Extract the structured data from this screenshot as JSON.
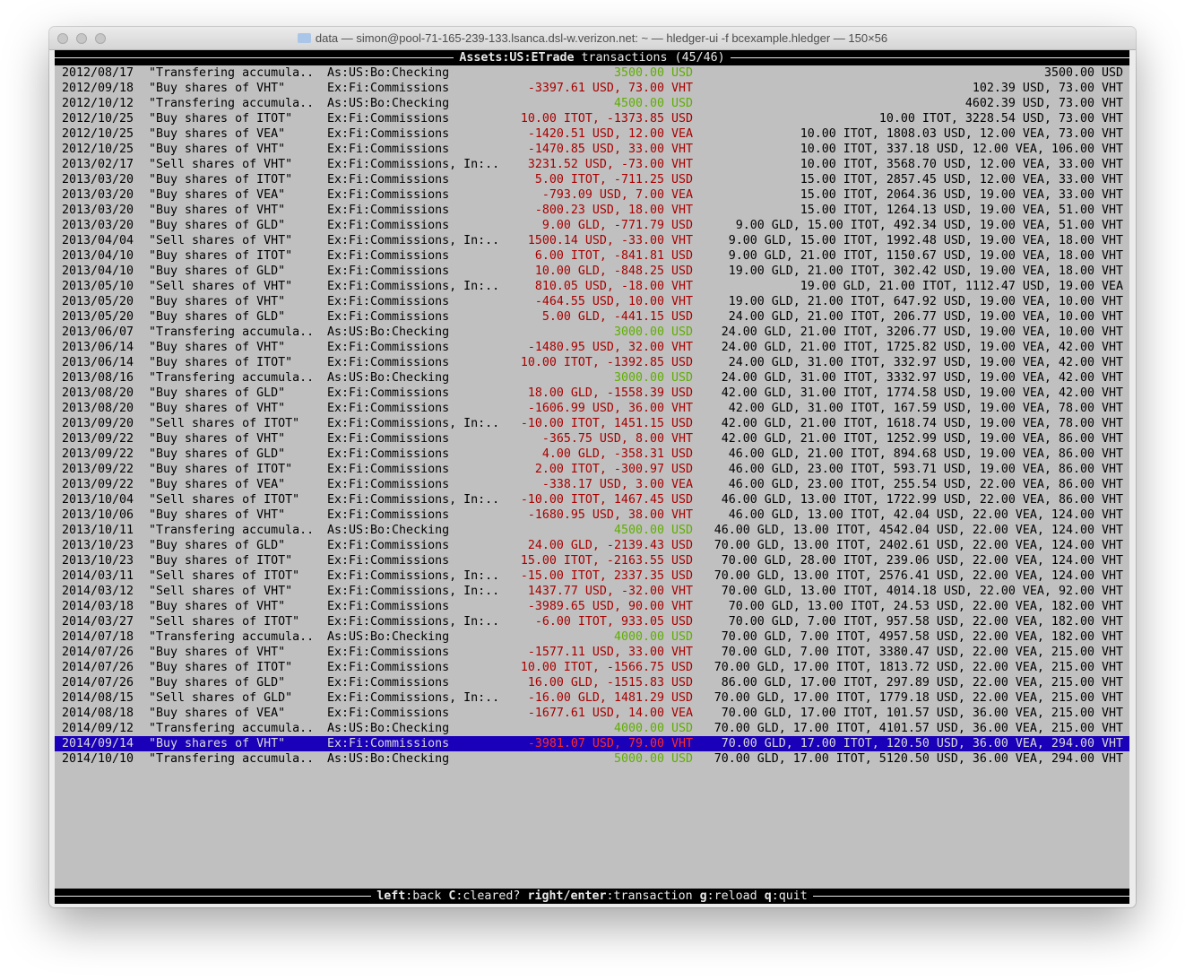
{
  "window": {
    "title": "data — simon@pool-71-165-239-133.lsanca.dsl-w.verizon.net: ~ — hledger-ui -f bcexample.hledger — 150×56"
  },
  "header": {
    "account": "Assets:US:ETrade",
    "suffix": " transactions (45/46)"
  },
  "colors": {
    "income": "#5fae00",
    "expense": "#a80000",
    "selection": "#1a00b8",
    "background": "#c0c0c0"
  },
  "selected_index": 44,
  "rows": [
    [
      "2012/08/17",
      "\"Transfering accumula..",
      "As:US:Bo:Checking",
      "3500.00 USD",
      "3500.00 USD",
      "inc"
    ],
    [
      "2012/09/18",
      "\"Buy shares of VHT\"",
      "Ex:Fi:Commissions",
      "-3397.61 USD, 73.00 VHT",
      "102.39 USD, 73.00 VHT",
      "exp"
    ],
    [
      "2012/10/12",
      "\"Transfering accumula..",
      "As:US:Bo:Checking",
      "4500.00 USD",
      "4602.39 USD, 73.00 VHT",
      "inc"
    ],
    [
      "2012/10/25",
      "\"Buy shares of ITOT\"",
      "Ex:Fi:Commissions",
      "10.00 ITOT, -1373.85 USD",
      "10.00 ITOT, 3228.54 USD, 73.00 VHT",
      "exp"
    ],
    [
      "2012/10/25",
      "\"Buy shares of VEA\"",
      "Ex:Fi:Commissions",
      "-1420.51 USD, 12.00 VEA",
      "10.00 ITOT, 1808.03 USD, 12.00 VEA, 73.00 VHT",
      "exp"
    ],
    [
      "2012/10/25",
      "\"Buy shares of VHT\"",
      "Ex:Fi:Commissions",
      "-1470.85 USD, 33.00 VHT",
      "10.00 ITOT, 337.18 USD, 12.00 VEA, 106.00 VHT",
      "exp"
    ],
    [
      "2013/02/17",
      "\"Sell shares of VHT\"",
      "Ex:Fi:Commissions, In:..",
      "3231.52 USD, -73.00 VHT",
      "10.00 ITOT, 3568.70 USD, 12.00 VEA, 33.00 VHT",
      "exp"
    ],
    [
      "2013/03/20",
      "\"Buy shares of ITOT\"",
      "Ex:Fi:Commissions",
      "5.00 ITOT, -711.25 USD",
      "15.00 ITOT, 2857.45 USD, 12.00 VEA, 33.00 VHT",
      "exp"
    ],
    [
      "2013/03/20",
      "\"Buy shares of VEA\"",
      "Ex:Fi:Commissions",
      "-793.09 USD, 7.00 VEA",
      "15.00 ITOT, 2064.36 USD, 19.00 VEA, 33.00 VHT",
      "exp"
    ],
    [
      "2013/03/20",
      "\"Buy shares of VHT\"",
      "Ex:Fi:Commissions",
      "-800.23 USD, 18.00 VHT",
      "15.00 ITOT, 1264.13 USD, 19.00 VEA, 51.00 VHT",
      "exp"
    ],
    [
      "2013/03/20",
      "\"Buy shares of GLD\"",
      "Ex:Fi:Commissions",
      "9.00 GLD, -771.79 USD",
      "9.00 GLD, 15.00 ITOT, 492.34 USD, 19.00 VEA, 51.00 VHT",
      "exp"
    ],
    [
      "2013/04/04",
      "\"Sell shares of VHT\"",
      "Ex:Fi:Commissions, In:..",
      "1500.14 USD, -33.00 VHT",
      "9.00 GLD, 15.00 ITOT, 1992.48 USD, 19.00 VEA, 18.00 VHT",
      "exp"
    ],
    [
      "2013/04/10",
      "\"Buy shares of ITOT\"",
      "Ex:Fi:Commissions",
      "6.00 ITOT, -841.81 USD",
      "9.00 GLD, 21.00 ITOT, 1150.67 USD, 19.00 VEA, 18.00 VHT",
      "exp"
    ],
    [
      "2013/04/10",
      "\"Buy shares of GLD\"",
      "Ex:Fi:Commissions",
      "10.00 GLD, -848.25 USD",
      "19.00 GLD, 21.00 ITOT, 302.42 USD, 19.00 VEA, 18.00 VHT",
      "exp"
    ],
    [
      "2013/05/10",
      "\"Sell shares of VHT\"",
      "Ex:Fi:Commissions, In:..",
      "810.05 USD, -18.00 VHT",
      "19.00 GLD, 21.00 ITOT, 1112.47 USD, 19.00 VEA",
      "exp"
    ],
    [
      "2013/05/20",
      "\"Buy shares of VHT\"",
      "Ex:Fi:Commissions",
      "-464.55 USD, 10.00 VHT",
      "19.00 GLD, 21.00 ITOT, 647.92 USD, 19.00 VEA, 10.00 VHT",
      "exp"
    ],
    [
      "2013/05/20",
      "\"Buy shares of GLD\"",
      "Ex:Fi:Commissions",
      "5.00 GLD, -441.15 USD",
      "24.00 GLD, 21.00 ITOT, 206.77 USD, 19.00 VEA, 10.00 VHT",
      "exp"
    ],
    [
      "2013/06/07",
      "\"Transfering accumula..",
      "As:US:Bo:Checking",
      "3000.00 USD",
      "24.00 GLD, 21.00 ITOT, 3206.77 USD, 19.00 VEA, 10.00 VHT",
      "inc"
    ],
    [
      "2013/06/14",
      "\"Buy shares of VHT\"",
      "Ex:Fi:Commissions",
      "-1480.95 USD, 32.00 VHT",
      "24.00 GLD, 21.00 ITOT, 1725.82 USD, 19.00 VEA, 42.00 VHT",
      "exp"
    ],
    [
      "2013/06/14",
      "\"Buy shares of ITOT\"",
      "Ex:Fi:Commissions",
      "10.00 ITOT, -1392.85 USD",
      "24.00 GLD, 31.00 ITOT, 332.97 USD, 19.00 VEA, 42.00 VHT",
      "exp"
    ],
    [
      "2013/08/16",
      "\"Transfering accumula..",
      "As:US:Bo:Checking",
      "3000.00 USD",
      "24.00 GLD, 31.00 ITOT, 3332.97 USD, 19.00 VEA, 42.00 VHT",
      "inc"
    ],
    [
      "2013/08/20",
      "\"Buy shares of GLD\"",
      "Ex:Fi:Commissions",
      "18.00 GLD, -1558.39 USD",
      "42.00 GLD, 31.00 ITOT, 1774.58 USD, 19.00 VEA, 42.00 VHT",
      "exp"
    ],
    [
      "2013/08/20",
      "\"Buy shares of VHT\"",
      "Ex:Fi:Commissions",
      "-1606.99 USD, 36.00 VHT",
      "42.00 GLD, 31.00 ITOT, 167.59 USD, 19.00 VEA, 78.00 VHT",
      "exp"
    ],
    [
      "2013/09/20",
      "\"Sell shares of ITOT\"",
      "Ex:Fi:Commissions, In:..",
      "-10.00 ITOT, 1451.15 USD",
      "42.00 GLD, 21.00 ITOT, 1618.74 USD, 19.00 VEA, 78.00 VHT",
      "exp"
    ],
    [
      "2013/09/22",
      "\"Buy shares of VHT\"",
      "Ex:Fi:Commissions",
      "-365.75 USD, 8.00 VHT",
      "42.00 GLD, 21.00 ITOT, 1252.99 USD, 19.00 VEA, 86.00 VHT",
      "exp"
    ],
    [
      "2013/09/22",
      "\"Buy shares of GLD\"",
      "Ex:Fi:Commissions",
      "4.00 GLD, -358.31 USD",
      "46.00 GLD, 21.00 ITOT, 894.68 USD, 19.00 VEA, 86.00 VHT",
      "exp"
    ],
    [
      "2013/09/22",
      "\"Buy shares of ITOT\"",
      "Ex:Fi:Commissions",
      "2.00 ITOT, -300.97 USD",
      "46.00 GLD, 23.00 ITOT, 593.71 USD, 19.00 VEA, 86.00 VHT",
      "exp"
    ],
    [
      "2013/09/22",
      "\"Buy shares of VEA\"",
      "Ex:Fi:Commissions",
      "-338.17 USD, 3.00 VEA",
      "46.00 GLD, 23.00 ITOT, 255.54 USD, 22.00 VEA, 86.00 VHT",
      "exp"
    ],
    [
      "2013/10/04",
      "\"Sell shares of ITOT\"",
      "Ex:Fi:Commissions, In:..",
      "-10.00 ITOT, 1467.45 USD",
      "46.00 GLD, 13.00 ITOT, 1722.99 USD, 22.00 VEA, 86.00 VHT",
      "exp"
    ],
    [
      "2013/10/06",
      "\"Buy shares of VHT\"",
      "Ex:Fi:Commissions",
      "-1680.95 USD, 38.00 VHT",
      "46.00 GLD, 13.00 ITOT, 42.04 USD, 22.00 VEA, 124.00 VHT",
      "exp"
    ],
    [
      "2013/10/11",
      "\"Transfering accumula..",
      "As:US:Bo:Checking",
      "4500.00 USD",
      "46.00 GLD, 13.00 ITOT, 4542.04 USD, 22.00 VEA, 124.00 VHT",
      "inc"
    ],
    [
      "2013/10/23",
      "\"Buy shares of GLD\"",
      "Ex:Fi:Commissions",
      "24.00 GLD, -2139.43 USD",
      "70.00 GLD, 13.00 ITOT, 2402.61 USD, 22.00 VEA, 124.00 VHT",
      "exp"
    ],
    [
      "2013/10/23",
      "\"Buy shares of ITOT\"",
      "Ex:Fi:Commissions",
      "15.00 ITOT, -2163.55 USD",
      "70.00 GLD, 28.00 ITOT, 239.06 USD, 22.00 VEA, 124.00 VHT",
      "exp"
    ],
    [
      "2014/03/11",
      "\"Sell shares of ITOT\"",
      "Ex:Fi:Commissions, In:..",
      "-15.00 ITOT, 2337.35 USD",
      "70.00 GLD, 13.00 ITOT, 2576.41 USD, 22.00 VEA, 124.00 VHT",
      "exp"
    ],
    [
      "2014/03/12",
      "\"Sell shares of VHT\"",
      "Ex:Fi:Commissions, In:..",
      "1437.77 USD, -32.00 VHT",
      "70.00 GLD, 13.00 ITOT, 4014.18 USD, 22.00 VEA, 92.00 VHT",
      "exp"
    ],
    [
      "2014/03/18",
      "\"Buy shares of VHT\"",
      "Ex:Fi:Commissions",
      "-3989.65 USD, 90.00 VHT",
      "70.00 GLD, 13.00 ITOT, 24.53 USD, 22.00 VEA, 182.00 VHT",
      "exp"
    ],
    [
      "2014/03/27",
      "\"Sell shares of ITOT\"",
      "Ex:Fi:Commissions, In:..",
      "-6.00 ITOT, 933.05 USD",
      "70.00 GLD, 7.00 ITOT, 957.58 USD, 22.00 VEA, 182.00 VHT",
      "exp"
    ],
    [
      "2014/07/18",
      "\"Transfering accumula..",
      "As:US:Bo:Checking",
      "4000.00 USD",
      "70.00 GLD, 7.00 ITOT, 4957.58 USD, 22.00 VEA, 182.00 VHT",
      "inc"
    ],
    [
      "2014/07/26",
      "\"Buy shares of VHT\"",
      "Ex:Fi:Commissions",
      "-1577.11 USD, 33.00 VHT",
      "70.00 GLD, 7.00 ITOT, 3380.47 USD, 22.00 VEA, 215.00 VHT",
      "exp"
    ],
    [
      "2014/07/26",
      "\"Buy shares of ITOT\"",
      "Ex:Fi:Commissions",
      "10.00 ITOT, -1566.75 USD",
      "70.00 GLD, 17.00 ITOT, 1813.72 USD, 22.00 VEA, 215.00 VHT",
      "exp"
    ],
    [
      "2014/07/26",
      "\"Buy shares of GLD\"",
      "Ex:Fi:Commissions",
      "16.00 GLD, -1515.83 USD",
      "86.00 GLD, 17.00 ITOT, 297.89 USD, 22.00 VEA, 215.00 VHT",
      "exp"
    ],
    [
      "2014/08/15",
      "\"Sell shares of GLD\"",
      "Ex:Fi:Commissions, In:..",
      "-16.00 GLD, 1481.29 USD",
      "70.00 GLD, 17.00 ITOT, 1779.18 USD, 22.00 VEA, 215.00 VHT",
      "exp"
    ],
    [
      "2014/08/18",
      "\"Buy shares of VEA\"",
      "Ex:Fi:Commissions",
      "-1677.61 USD, 14.00 VEA",
      "70.00 GLD, 17.00 ITOT, 101.57 USD, 36.00 VEA, 215.00 VHT",
      "exp"
    ],
    [
      "2014/09/12",
      "\"Transfering accumula..",
      "As:US:Bo:Checking",
      "4000.00 USD",
      "70.00 GLD, 17.00 ITOT, 4101.57 USD, 36.00 VEA, 215.00 VHT",
      "inc"
    ],
    [
      "2014/09/14",
      "\"Buy shares of VHT\"",
      "Ex:Fi:Commissions",
      "-3981.07 USD, 79.00 VHT",
      "70.00 GLD, 17.00 ITOT, 120.50 USD, 36.00 VEA, 294.00 VHT",
      "exp"
    ],
    [
      "2014/10/10",
      "\"Transfering accumula..",
      "As:US:Bo:Checking",
      "5000.00 USD",
      "70.00 GLD, 17.00 ITOT, 5120.50 USD, 36.00 VEA, 294.00 VHT",
      "inc"
    ]
  ],
  "footer": {
    "keys": [
      {
        "key": "left",
        "action": "back"
      },
      {
        "key": "C",
        "action": "cleared?"
      },
      {
        "key": "right/enter",
        "action": "transaction"
      },
      {
        "key": "g",
        "action": "reload"
      },
      {
        "key": "q",
        "action": "quit"
      }
    ]
  }
}
